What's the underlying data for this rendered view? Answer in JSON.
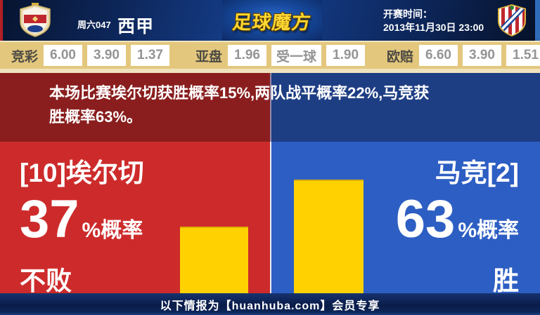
{
  "header": {
    "match_no": "周六047",
    "league": "西甲",
    "brand": "足球魔方",
    "kickoff_label": "开赛时间：",
    "kickoff_time": "2013年11月30日 23:00",
    "home_team_logo": "elche-crest",
    "away_team_logo": "atletico-madrid-crest"
  },
  "odds_bar": {
    "groups": [
      {
        "label": "竞彩",
        "values": [
          "6.00",
          "3.90",
          "1.37"
        ]
      },
      {
        "label": "亚盘",
        "values": [
          "1.96",
          "受一球",
          "1.90"
        ]
      },
      {
        "label": "欧赔",
        "values": [
          "6.60",
          "3.90",
          "1.51"
        ]
      }
    ]
  },
  "summary": {
    "line1": "本场比赛埃尔切获胜概率15%,两队战平概率22%,马竞获",
    "line2": "胜概率63%。"
  },
  "home": {
    "name": "[10]埃尔切",
    "percent": "37",
    "percent_suffix": "%概率",
    "outcome": "不败"
  },
  "away": {
    "name": "马竞[2]",
    "percent": "63",
    "percent_suffix": "%概率",
    "outcome": "胜"
  },
  "footer": {
    "text": "以下情报为【huanhuba.com】会员专享"
  },
  "colors": {
    "home_accent": "#cd2b2b",
    "away_accent": "#2d5ec3",
    "banner_red": "#8a1e1e",
    "banner_blue": "#1e3e84",
    "bar_yellow": "#ffd101",
    "odds_bg": "#e3c77d",
    "brand_gold": "#ffd832"
  },
  "chart_data": {
    "type": "bar",
    "categories": [
      "[10]埃尔切 不败",
      "马竞[2] 胜"
    ],
    "values": [
      37,
      63
    ],
    "unit": "%",
    "ylim": [
      0,
      100
    ],
    "annotations": {
      "home_win_prob": 15,
      "draw_prob": 22,
      "away_win_prob": 63
    }
  }
}
